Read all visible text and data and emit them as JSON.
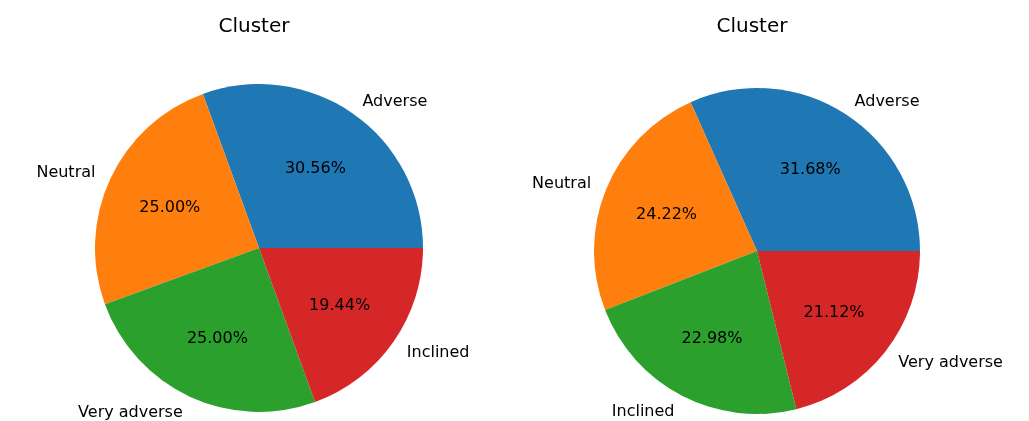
{
  "chart_data": [
    {
      "type": "pie",
      "title": "Cluster",
      "categories": [
        "Adverse",
        "Neutral",
        "Very adverse",
        "Inclined"
      ],
      "values": [
        30.56,
        25.0,
        25.0,
        19.44
      ],
      "value_labels": [
        "30.56%",
        "25.00%",
        "25.00%",
        "19.44%"
      ],
      "colors": [
        "#1f77b4",
        "#ff7f0e",
        "#2ca02c",
        "#d62728"
      ]
    },
    {
      "type": "pie",
      "title": "Cluster",
      "categories": [
        "Adverse",
        "Neutral",
        "Inclined",
        "Very adverse"
      ],
      "values": [
        31.68,
        24.22,
        22.98,
        21.12
      ],
      "value_labels": [
        "31.68%",
        "24.22%",
        "22.98%",
        "21.12%"
      ],
      "colors": [
        "#1f77b4",
        "#ff7f0e",
        "#2ca02c",
        "#d62728"
      ]
    }
  ]
}
